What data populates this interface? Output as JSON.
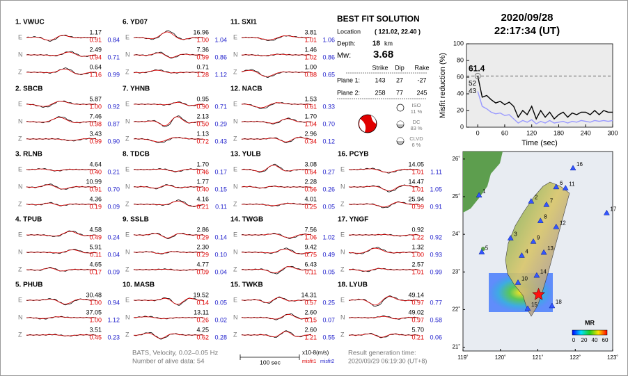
{
  "components": [
    "E",
    "N",
    "Z"
  ],
  "stations": [
    {
      "label": "1.  VWUC",
      "rows": [
        [
          "1.17",
          "0.91",
          "0.84"
        ],
        [
          "2.49",
          "0.94",
          "0.71"
        ],
        [
          "0.64",
          "1.16",
          "0.99"
        ]
      ]
    },
    {
      "label": "2.  SBCB",
      "rows": [
        [
          "5.87",
          "1.00",
          "0.92"
        ],
        [
          "7.46",
          "0.98",
          "0.87"
        ],
        [
          "3.43",
          "0.99",
          "0.90"
        ]
      ]
    },
    {
      "label": "3.  RLNB",
      "rows": [
        [
          "4.64",
          "0.40",
          "0.21"
        ],
        [
          "10.99",
          "0.91",
          "0.70"
        ],
        [
          "4.36",
          "0.19",
          "0.09"
        ]
      ]
    },
    {
      "label": "4.  TPUB",
      "rows": [
        [
          "4.58",
          "0.49",
          "0.24"
        ],
        [
          "5.91",
          "0.11",
          "0.04"
        ],
        [
          "4.65",
          "0.17",
          "0.09"
        ]
      ]
    },
    {
      "label": "5.  PHUB",
      "rows": [
        [
          "30.48",
          "1.00",
          "0.94"
        ],
        [
          "37.05",
          "1.00",
          "1.12"
        ],
        [
          "3.51",
          "0.45",
          "0.23"
        ]
      ]
    },
    {
      "label": "6.  YD07",
      "rows": [
        [
          "16.96",
          "1.00",
          "1.04"
        ],
        [
          "7.36",
          "0.99",
          "0.86"
        ],
        [
          "0.71",
          "1.28",
          "1.12"
        ]
      ]
    },
    {
      "label": "7.  YHNB",
      "rows": [
        [
          "0.95",
          "0.90",
          "0.71"
        ],
        [
          "2.13",
          "0.50",
          "0.29"
        ],
        [
          "1.13",
          "0.72",
          "0.43"
        ]
      ]
    },
    {
      "label": "8.  TDCB",
      "rows": [
        [
          "1.70",
          "0.46",
          "0.17"
        ],
        [
          "1.77",
          "0.40",
          "0.15"
        ],
        [
          "4.16",
          "0.21",
          "0.11"
        ]
      ]
    },
    {
      "label": "9.  SSLB",
      "rows": [
        [
          "2.86",
          "0.29",
          "0.14"
        ],
        [
          "2.30",
          "0.29",
          "0.10"
        ],
        [
          "4.77",
          "0.09",
          "0.04"
        ]
      ]
    },
    {
      "label": "10. MASB",
      "rows": [
        [
          "19.52",
          "0.14",
          "0.05"
        ],
        [
          "13.11",
          "0.26",
          "0.02"
        ],
        [
          "4.25",
          "0.62",
          "0.28"
        ]
      ]
    },
    {
      "label": "11. SXI1",
      "rows": [
        [
          "3.81",
          "1.01",
          "1.06"
        ],
        [
          "1.46",
          "1.02",
          "0.86"
        ],
        [
          "1.00",
          "0.88",
          "0.65"
        ]
      ]
    },
    {
      "label": "12. NACB",
      "rows": [
        [
          "1.53",
          "0.61",
          "0.33"
        ],
        [
          "1.70",
          "1.04",
          "0.70"
        ],
        [
          "2.96",
          "0.34",
          "0.12"
        ]
      ]
    },
    {
      "label": "13. YULB",
      "rows": [
        [
          "3.08",
          "0.64",
          "0.27"
        ],
        [
          "2.28",
          "0.56",
          "0.26"
        ],
        [
          "4.01",
          "0.25",
          "0.05"
        ]
      ]
    },
    {
      "label": "14. TWGB",
      "rows": [
        [
          "7.56",
          "1.06",
          "1.02"
        ],
        [
          "9.42",
          "0.75",
          "0.49"
        ],
        [
          "6.43",
          "0.11",
          "0.05"
        ]
      ]
    },
    {
      "label": "15. TWKB",
      "rows": [
        [
          "14.31",
          "0.57",
          "0.25"
        ],
        [
          "2.60",
          "0.15",
          "0.07"
        ],
        [
          "2.60",
          "1.21",
          "0.55"
        ]
      ]
    },
    {
      "label": "16. PCYB",
      "rows": [
        [
          "14.05",
          "1.01",
          "1.11"
        ],
        [
          "14.47",
          "1.01",
          "1.05"
        ],
        [
          "25.94",
          "0.99",
          "0.91"
        ]
      ]
    },
    {
      "label": "17. YNGF",
      "rows": [
        [
          "0.92",
          "1.22",
          "0.92"
        ],
        [
          "1.32",
          "1.00",
          "0.93"
        ],
        [
          "2.57",
          "1.01",
          "0.99"
        ]
      ]
    },
    {
      "label": "18. LYUB",
      "rows": [
        [
          "49.14",
          "0.97",
          "0.77"
        ],
        [
          "49.02",
          "0.97",
          "0.58"
        ],
        [
          "5.70",
          "0.21",
          "0.06"
        ]
      ]
    }
  ],
  "solution": {
    "title": "BEST FIT SOLUTION",
    "location_label": "Location",
    "location": "( 121.02,  22.40 )",
    "depth_label": "Depth:",
    "depth": "18",
    "depth_unit": "km",
    "mw_label": "Mw:",
    "mw": "3.68",
    "table": {
      "header": [
        "Strike",
        "Dip",
        "Rake"
      ],
      "rows": [
        {
          "label": "Plane 1:",
          "cells": [
            "143",
            "27",
            "-27"
          ]
        },
        {
          "label": "Plane 2:",
          "cells": [
            "258",
            "77",
            "245"
          ]
        }
      ]
    },
    "components": [
      {
        "name": "ISO",
        "pct": "11 %"
      },
      {
        "name": "DC",
        "pct": "83 %"
      },
      {
        "name": "CLVD",
        "pct": "6 %"
      }
    ]
  },
  "header": {
    "date": "2020/09/28",
    "time": "22:17:34  (UT)"
  },
  "misfit_chart": {
    "type": "line",
    "xlabel": "Time (sec)",
    "ylabel": "Misfit reduction (%)",
    "xlim": [
      -25,
      300
    ],
    "ylim": [
      0,
      100
    ],
    "xticks": [
      0,
      60,
      120,
      180,
      240,
      300
    ],
    "yticks": [
      0,
      20,
      40,
      60,
      80,
      100
    ],
    "x": [
      0,
      10,
      20,
      30,
      40,
      50,
      60,
      70,
      80,
      90,
      100,
      110,
      120,
      130,
      140,
      150,
      160,
      170,
      180,
      190,
      200,
      210,
      220,
      230,
      240,
      250,
      260,
      270,
      280,
      290,
      300
    ],
    "series": [
      {
        "color": "#000000",
        "values": [
          61.4,
          36,
          38,
          33,
          29,
          31,
          27,
          30,
          25,
          12,
          20,
          15,
          25,
          10,
          20,
          12,
          18,
          10,
          15,
          18,
          12,
          17,
          15,
          18,
          18,
          15,
          20,
          15,
          20,
          18,
          18
        ]
      },
      {
        "color": "#9999ff",
        "values": [
          43,
          25,
          22,
          18,
          16,
          17,
          14,
          15,
          10,
          5,
          8,
          6,
          9,
          4,
          7,
          5,
          8,
          5,
          6,
          7,
          5,
          7,
          6,
          8,
          7,
          6,
          8,
          7,
          8,
          7,
          8
        ]
      }
    ],
    "annotations": [
      {
        "value": 61.4,
        "color": "#dd0000"
      },
      {
        "value": 52,
        "color": "#999999"
      },
      {
        "value": 43,
        "color": "#9999ff"
      }
    ]
  },
  "map": {
    "xlim": [
      119,
      123
    ],
    "ylim": [
      20.9,
      26.2
    ],
    "xticks": [
      {
        "value": 119,
        "label": "119˚"
      },
      {
        "value": 120,
        "label": "120˚"
      },
      {
        "value": 121,
        "label": "121˚"
      },
      {
        "value": 122,
        "label": "122˚"
      },
      {
        "value": 123,
        "label": "123˚"
      }
    ],
    "yticks": [
      {
        "value": 21,
        "label": "21˚"
      },
      {
        "value": 22,
        "label": "22˚"
      },
      {
        "value": 23,
        "label": "23˚"
      },
      {
        "value": 24,
        "label": "24˚"
      },
      {
        "value": 25,
        "label": "25˚"
      },
      {
        "value": 26,
        "label": "26˚"
      }
    ],
    "stations": [
      {
        "label": "1",
        "lon": 119.43,
        "lat": 25.04
      },
      {
        "label": "2",
        "lon": 120.82,
        "lat": 24.88
      },
      {
        "label": "3",
        "lon": 120.27,
        "lat": 23.9
      },
      {
        "label": "4",
        "lon": 120.57,
        "lat": 23.44
      },
      {
        "label": "5",
        "lon": 119.5,
        "lat": 23.53
      },
      {
        "label": "6",
        "lon": 121.49,
        "lat": 25.26
      },
      {
        "label": "7",
        "lon": 121.23,
        "lat": 24.79
      },
      {
        "label": "8",
        "lon": 121.07,
        "lat": 24.36
      },
      {
        "label": "9",
        "lon": 120.88,
        "lat": 23.81
      },
      {
        "label": "10",
        "lon": 120.47,
        "lat": 22.72
      },
      {
        "label": "11",
        "lon": 121.74,
        "lat": 25.23
      },
      {
        "label": "12",
        "lon": 121.49,
        "lat": 24.2
      },
      {
        "label": "13",
        "lon": 121.16,
        "lat": 23.52
      },
      {
        "label": "14",
        "lon": 120.97,
        "lat": 22.91
      },
      {
        "label": "15",
        "lon": 120.73,
        "lat": 22.03
      },
      {
        "label": "16",
        "lon": 121.94,
        "lat": 25.76
      },
      {
        "label": "17",
        "lon": 122.84,
        "lat": 24.57
      },
      {
        "label": "18",
        "lon": 121.38,
        "lat": 22.1
      }
    ],
    "epicenter": {
      "lon": 121.02,
      "lat": 22.4
    },
    "colorbar": {
      "title": "MR",
      "labels": [
        "0",
        "20",
        "40",
        "60"
      ]
    }
  },
  "footer": {
    "method": "BATS, Velocity, 0.02–0.05 Hz",
    "alive": "Number of alive data: 54",
    "scale": "100 sec",
    "unit": "x10-8(m/s)",
    "misfit1": "misfit1",
    "misfit2": "misfit2",
    "result_label": "Result generation time:",
    "result_time": "2020/09/29 06:19:30 (UT+8)"
  }
}
